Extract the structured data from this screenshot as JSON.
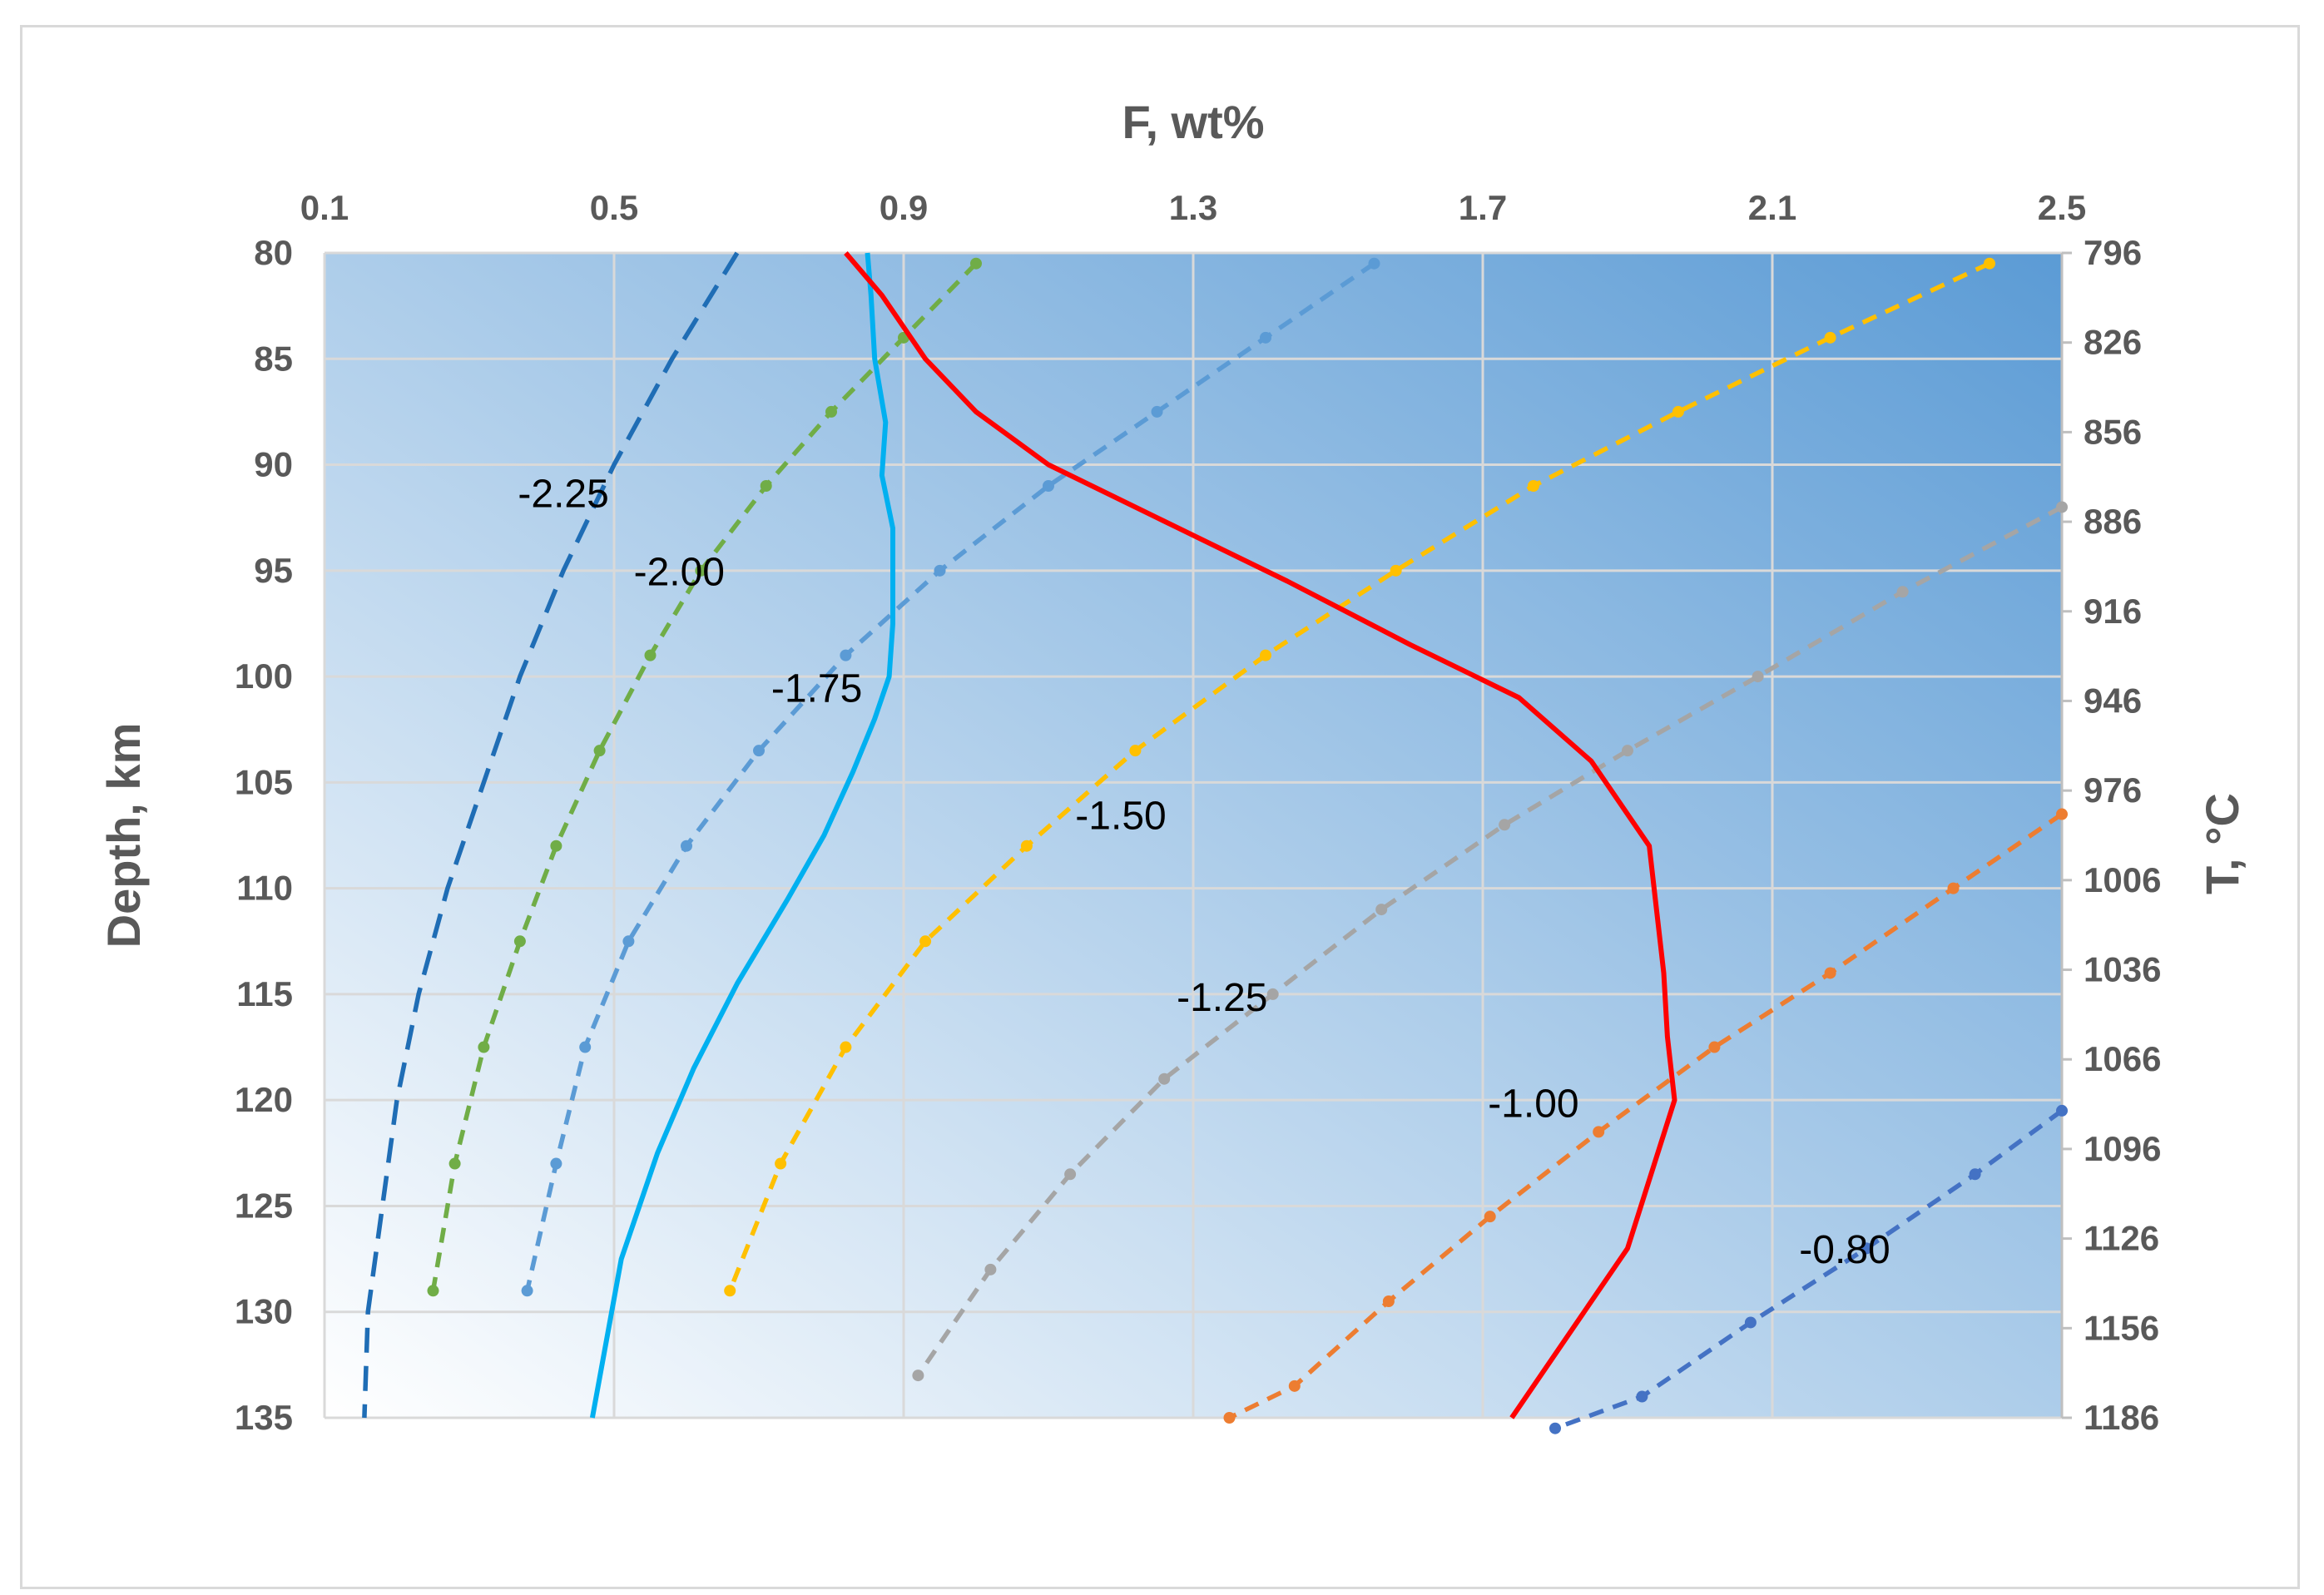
{
  "chart_data": {
    "type": "line",
    "xlabel": "F, wt%",
    "ylabel": "Depth, km",
    "y2label": "T, °C",
    "xlim": [
      0.1,
      2.5
    ],
    "ylim": [
      80,
      135
    ],
    "xticks": [
      "0.1",
      "0.5",
      "0.9",
      "1.3",
      "1.7",
      "2.1",
      "2.5"
    ],
    "yticks": [
      "80",
      "85",
      "90",
      "95",
      "100",
      "105",
      "110",
      "115",
      "120",
      "125",
      "130",
      "135"
    ],
    "y2ticks": [
      "796",
      "826",
      "856",
      "886",
      "916",
      "946",
      "976",
      "1006",
      "1036",
      "1066",
      "1096",
      "1126",
      "1156",
      "1186"
    ],
    "grid": true,
    "background_gradient": [
      "#ffffff",
      "#5b9bd5"
    ],
    "series": [
      {
        "label": "-2.25",
        "color": "#1f6db5",
        "style": "long-dash",
        "markers": false,
        "x": [
          0.67,
          0.58,
          0.5,
          0.43,
          0.37,
          0.32,
          0.27,
          0.23,
          0.2,
          0.18,
          0.16,
          0.155
        ],
        "y": [
          80,
          85,
          90,
          95,
          100,
          105,
          110,
          115,
          120,
          125,
          130,
          135
        ]
      },
      {
        "label": "-2.00",
        "color": "#70ad47",
        "style": "dot-dash",
        "markers": true,
        "x": [
          1.0,
          0.9,
          0.8,
          0.71,
          0.62,
          0.55,
          0.48,
          0.42,
          0.37,
          0.32,
          0.28,
          0.25
        ],
        "y": [
          80.5,
          84,
          87.5,
          91,
          95,
          99,
          103.5,
          108,
          112.5,
          117.5,
          123,
          129
        ]
      },
      {
        "label": "-1.75",
        "color": "#5b9bd5",
        "style": "dot-dash",
        "markers": true,
        "x": [
          1.55,
          1.4,
          1.25,
          1.1,
          0.95,
          0.82,
          0.7,
          0.6,
          0.52,
          0.46,
          0.42,
          0.38
        ],
        "y": [
          80.5,
          84,
          87.5,
          91,
          95,
          99,
          103.5,
          108,
          112.5,
          117.5,
          123,
          129
        ]
      },
      {
        "label": "-1.50",
        "color": "#ffc000",
        "style": "dot-dash",
        "markers": true,
        "x": [
          2.4,
          2.18,
          1.97,
          1.77,
          1.58,
          1.4,
          1.22,
          1.07,
          0.93,
          0.82,
          0.73,
          0.66
        ],
        "y": [
          80.5,
          84,
          87.5,
          91,
          95,
          99,
          103.5,
          108,
          112.5,
          117.5,
          123,
          129
        ]
      },
      {
        "label": "-1.25",
        "color": "#a5a5a5",
        "style": "dot-dash",
        "markers": true,
        "x": [
          2.5,
          2.28,
          2.08,
          1.9,
          1.73,
          1.56,
          1.41,
          1.26,
          1.13,
          1.02,
          0.92
        ],
        "y": [
          92,
          96,
          100,
          103.5,
          107,
          111,
          115,
          119,
          123.5,
          128,
          133
        ]
      },
      {
        "label": "-1.00",
        "color": "#ed7d31",
        "style": "dot-dash",
        "markers": true,
        "x": [
          2.5,
          2.35,
          2.18,
          2.02,
          1.86,
          1.71,
          1.57,
          1.44,
          1.35
        ],
        "y": [
          106.5,
          110,
          114,
          117.5,
          121.5,
          125.5,
          129.5,
          133.5,
          135
        ]
      },
      {
        "label": "-0.80",
        "color": "#4472c4",
        "style": "dot-dash",
        "markers": true,
        "x": [
          2.5,
          2.38,
          2.23,
          2.07,
          1.92,
          1.8
        ],
        "y": [
          120.5,
          123.5,
          127,
          130.5,
          134,
          135.5
        ]
      },
      {
        "label": "",
        "color": "#00b0f0",
        "style": "solid",
        "markers": false,
        "x": [
          0.85,
          0.855,
          0.86,
          0.875,
          0.87,
          0.885,
          0.885,
          0.885,
          0.88,
          0.86,
          0.83,
          0.79,
          0.74,
          0.67,
          0.61,
          0.56,
          0.51,
          0.47
        ],
        "y": [
          80,
          82,
          85,
          88,
          90.5,
          93,
          95,
          97.5,
          100,
          102,
          104.5,
          107.5,
          110.5,
          114.5,
          118.5,
          122.5,
          127.5,
          135
        ]
      },
      {
        "label": "",
        "color": "#ff0000",
        "style": "solid",
        "markers": false,
        "x": [
          0.82,
          0.87,
          0.93,
          1.0,
          1.1,
          1.25,
          1.43,
          1.6,
          1.75,
          1.85,
          1.93,
          1.94,
          1.95,
          1.955,
          1.965,
          1.9,
          1.82,
          1.74
        ],
        "y": [
          80,
          82,
          85,
          87.5,
          90,
          92.5,
          95.5,
          98.5,
          101,
          104,
          108,
          111,
          114,
          117,
          120,
          127,
          131,
          135
        ]
      }
    ],
    "curve_labels": [
      {
        "text": "-2.25",
        "x": 0.43,
        "y": 91.5
      },
      {
        "text": "-2.00",
        "x": 0.59,
        "y": 95.2
      },
      {
        "text": "-1.75",
        "x": 0.78,
        "y": 100.7
      },
      {
        "text": "-1.50",
        "x": 1.2,
        "y": 106.7
      },
      {
        "text": "-1.25",
        "x": 1.34,
        "y": 115.3
      },
      {
        "text": "-1.00",
        "x": 1.77,
        "y": 120.3
      },
      {
        "text": "-0.80",
        "x": 2.2,
        "y": 127.2
      }
    ]
  }
}
